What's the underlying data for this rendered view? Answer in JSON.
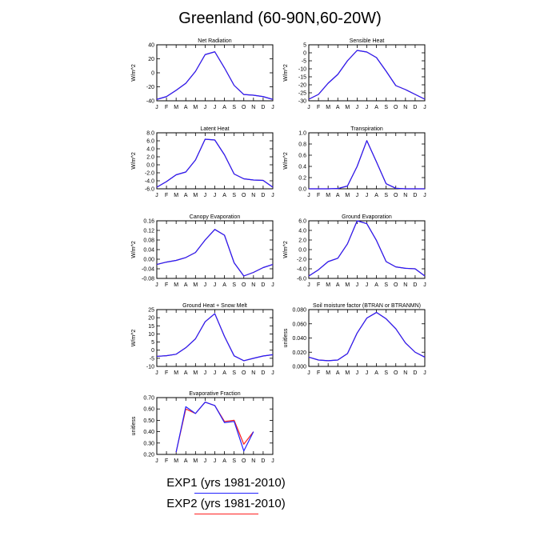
{
  "title": "Greenland (60-90N,60-20W)",
  "colors": {
    "exp1": "#2020ff",
    "exp2": "#ff2020",
    "axis": "#000000"
  },
  "legend": [
    {
      "label": "EXP1 (yrs 1981-2010)",
      "color": "#2020ff"
    },
    {
      "label": "EXP2 (yrs 1981-2010)",
      "color": "#ff2020"
    }
  ],
  "months": [
    "J",
    "F",
    "M",
    "A",
    "M",
    "J",
    "J",
    "A",
    "S",
    "O",
    "N",
    "D",
    "J"
  ],
  "chart_data": [
    {
      "type": "line",
      "title": "Net Radiation",
      "ylabel": "W/m^2",
      "ylim": [
        -40,
        40
      ],
      "yticks": [
        "40",
        "20",
        "0",
        "-20",
        "-40"
      ],
      "ytick_values": [
        40,
        20,
        0,
        -20,
        -40
      ],
      "categories": [
        "J",
        "F",
        "M",
        "A",
        "M",
        "J",
        "J",
        "A",
        "S",
        "O",
        "N",
        "D",
        "J"
      ],
      "series": [
        {
          "name": "EXP1",
          "values": [
            -38,
            -34,
            -25,
            -15,
            2,
            26,
            30,
            7,
            -18,
            -31,
            -32,
            -34,
            -38
          ]
        },
        {
          "name": "EXP2",
          "values": [
            -38,
            -34,
            -25,
            -15,
            2,
            26,
            30,
            7,
            -18,
            -31,
            -32,
            -34,
            -38
          ]
        }
      ]
    },
    {
      "type": "line",
      "title": "Sensible Heat",
      "ylabel": "W/m^2",
      "ylim": [
        -30,
        5
      ],
      "yticks": [
        "5",
        "0",
        "-5",
        "-10",
        "-15",
        "-20",
        "-25",
        "-30"
      ],
      "ytick_values": [
        5,
        0,
        -5,
        -10,
        -15,
        -20,
        -25,
        -30
      ],
      "categories": [
        "J",
        "F",
        "M",
        "A",
        "M",
        "J",
        "J",
        "A",
        "S",
        "O",
        "N",
        "D",
        "J"
      ],
      "series": [
        {
          "name": "EXP1",
          "values": [
            -29,
            -26,
            -19,
            -13.5,
            -5,
            1.5,
            0.5,
            -3,
            -11.5,
            -20.5,
            -23,
            -26,
            -29
          ]
        },
        {
          "name": "EXP2",
          "values": [
            -29,
            -26,
            -19,
            -13.5,
            -5,
            1.5,
            0.5,
            -3,
            -11.5,
            -20.5,
            -23,
            -26,
            -29
          ]
        }
      ]
    },
    {
      "type": "line",
      "title": "Latent Heat",
      "ylabel": "W/m^2",
      "ylim": [
        -6,
        8
      ],
      "yticks": [
        "8.0",
        "6.0",
        "4.0",
        "2.0",
        "0.0",
        "-2.0",
        "-4.0",
        "-6.0"
      ],
      "ytick_values": [
        8,
        6,
        4,
        2,
        0,
        -2,
        -4,
        -6
      ],
      "categories": [
        "J",
        "F",
        "M",
        "A",
        "M",
        "J",
        "J",
        "A",
        "S",
        "O",
        "N",
        "D",
        "J"
      ],
      "series": [
        {
          "name": "EXP1",
          "values": [
            -5.6,
            -4.2,
            -2.5,
            -1.8,
            1.2,
            6.4,
            6.2,
            2.5,
            -2.3,
            -3.5,
            -3.8,
            -3.9,
            -5.6
          ]
        },
        {
          "name": "EXP2",
          "values": [
            -5.6,
            -4.2,
            -2.5,
            -1.8,
            1.2,
            6.4,
            6.2,
            2.5,
            -2.3,
            -3.5,
            -3.8,
            -3.9,
            -5.6
          ]
        }
      ]
    },
    {
      "type": "line",
      "title": "Transpiration",
      "ylabel": "W/m^2",
      "ylim": [
        0,
        1.0
      ],
      "yticks": [
        "1.0",
        "0.8",
        "0.6",
        "0.4",
        "0.2",
        "0.0"
      ],
      "ytick_values": [
        1.0,
        0.8,
        0.6,
        0.4,
        0.2,
        0.0
      ],
      "categories": [
        "J",
        "F",
        "M",
        "A",
        "M",
        "J",
        "J",
        "A",
        "S",
        "O",
        "N",
        "D",
        "J"
      ],
      "series": [
        {
          "name": "EXP1",
          "values": [
            0,
            0,
            0,
            0.005,
            0.05,
            0.4,
            0.86,
            0.48,
            0.09,
            0.01,
            0,
            0,
            0
          ]
        },
        {
          "name": "EXP2",
          "values": [
            0,
            0,
            0,
            0.005,
            0.05,
            0.4,
            0.86,
            0.48,
            0.09,
            0.01,
            0,
            0,
            0
          ]
        }
      ]
    },
    {
      "type": "line",
      "title": "Canopy Evaporation",
      "ylabel": "W/m^2",
      "ylim": [
        -0.08,
        0.16
      ],
      "yticks": [
        "0.16",
        "0.12",
        "0.08",
        "0.04",
        "0.00",
        "-0.04",
        "-0.08"
      ],
      "ytick_values": [
        0.16,
        0.12,
        0.08,
        0.04,
        0.0,
        -0.04,
        -0.08
      ],
      "categories": [
        "J",
        "F",
        "M",
        "A",
        "M",
        "J",
        "J",
        "A",
        "S",
        "O",
        "N",
        "D",
        "J"
      ],
      "series": [
        {
          "name": "EXP1",
          "values": [
            -0.022,
            -0.012,
            -0.005,
            0.007,
            0.028,
            0.08,
            0.124,
            0.1,
            -0.015,
            -0.07,
            -0.055,
            -0.035,
            -0.022
          ]
        },
        {
          "name": "EXP2",
          "values": [
            -0.022,
            -0.012,
            -0.005,
            0.007,
            0.028,
            0.08,
            0.124,
            0.1,
            -0.015,
            -0.07,
            -0.055,
            -0.035,
            -0.022
          ]
        }
      ]
    },
    {
      "type": "line",
      "title": "Ground Evaporation",
      "ylabel": "W/m^2",
      "ylim": [
        -6,
        6
      ],
      "yticks": [
        "6.0",
        "4.0",
        "2.0",
        "0.0",
        "-2.0",
        "-4.0",
        "-6.0"
      ],
      "ytick_values": [
        6,
        4,
        2,
        0,
        -2,
        -4,
        -6
      ],
      "categories": [
        "J",
        "F",
        "M",
        "A",
        "M",
        "J",
        "J",
        "A",
        "S",
        "O",
        "N",
        "D",
        "J"
      ],
      "series": [
        {
          "name": "EXP1",
          "values": [
            -5.5,
            -4.2,
            -2.5,
            -1.8,
            1.2,
            6.0,
            5.4,
            1.9,
            -2.5,
            -3.6,
            -3.9,
            -4.0,
            -5.5
          ]
        },
        {
          "name": "EXP2",
          "values": [
            -5.5,
            -4.2,
            -2.5,
            -1.8,
            1.2,
            6.0,
            5.4,
            1.9,
            -2.5,
            -3.6,
            -3.9,
            -4.0,
            -5.5
          ]
        }
      ]
    },
    {
      "type": "line",
      "title": "Ground Heat + Snow Melt",
      "ylabel": "W/m^2",
      "ylim": [
        -10,
        25
      ],
      "yticks": [
        "25",
        "20",
        "15",
        "10",
        "5",
        "0",
        "-5",
        "-10"
      ],
      "ytick_values": [
        25,
        20,
        15,
        10,
        5,
        0,
        -5,
        -10
      ],
      "categories": [
        "J",
        "F",
        "M",
        "A",
        "M",
        "J",
        "J",
        "A",
        "S",
        "O",
        "N",
        "D",
        "J"
      ],
      "series": [
        {
          "name": "EXP1",
          "values": [
            -3.8,
            -3.4,
            -2.5,
            1.5,
            7.0,
            17.5,
            22.5,
            8.5,
            -3.5,
            -6.5,
            -5.0,
            -3.6,
            -2.8
          ]
        },
        {
          "name": "EXP2",
          "values": [
            -3.8,
            -3.4,
            -2.5,
            1.5,
            7.0,
            17.5,
            22.5,
            8.5,
            -3.5,
            -6.5,
            -5.0,
            -3.6,
            -2.8
          ]
        }
      ]
    },
    {
      "type": "line",
      "title": "Soil moisture factor (BTRAN or BTRANMN)",
      "ylabel": "unitless",
      "ylim": [
        0,
        0.08
      ],
      "yticks": [
        "0.080",
        "0.060",
        "0.040",
        "0.020",
        "0.000"
      ],
      "ytick_values": [
        0.08,
        0.06,
        0.04,
        0.02,
        0.0
      ],
      "categories": [
        "J",
        "F",
        "M",
        "A",
        "M",
        "J",
        "J",
        "A",
        "S",
        "O",
        "N",
        "D",
        "J"
      ],
      "series": [
        {
          "name": "EXP1",
          "values": [
            0.013,
            0.009,
            0.008,
            0.009,
            0.018,
            0.047,
            0.068,
            0.076,
            0.067,
            0.053,
            0.033,
            0.02,
            0.013
          ]
        },
        {
          "name": "EXP2",
          "values": [
            0.013,
            0.009,
            0.008,
            0.009,
            0.018,
            0.047,
            0.068,
            0.076,
            0.067,
            0.053,
            0.033,
            0.02,
            0.013
          ]
        }
      ]
    },
    {
      "type": "line",
      "title": "Evaporative Fraction",
      "ylabel": "unitless",
      "ylim": [
        0.2,
        0.7
      ],
      "yticks": [
        "0.70",
        "0.60",
        "0.50",
        "0.40",
        "0.30",
        "0.20"
      ],
      "ytick_values": [
        0.7,
        0.6,
        0.5,
        0.4,
        0.3,
        0.2
      ],
      "categories": [
        "J",
        "F",
        "M",
        "A",
        "M",
        "J",
        "J",
        "A",
        "S",
        "O",
        "N",
        "D",
        "J"
      ],
      "series": [
        {
          "name": "EXP1",
          "values": [
            null,
            null,
            0.22,
            0.62,
            0.56,
            0.66,
            0.63,
            0.48,
            0.49,
            0.23,
            0.4,
            null,
            null
          ]
        },
        {
          "name": "EXP2",
          "values": [
            null,
            null,
            0.22,
            0.6,
            0.56,
            0.66,
            0.63,
            0.49,
            0.5,
            0.29,
            0.4,
            null,
            null
          ]
        }
      ]
    }
  ]
}
